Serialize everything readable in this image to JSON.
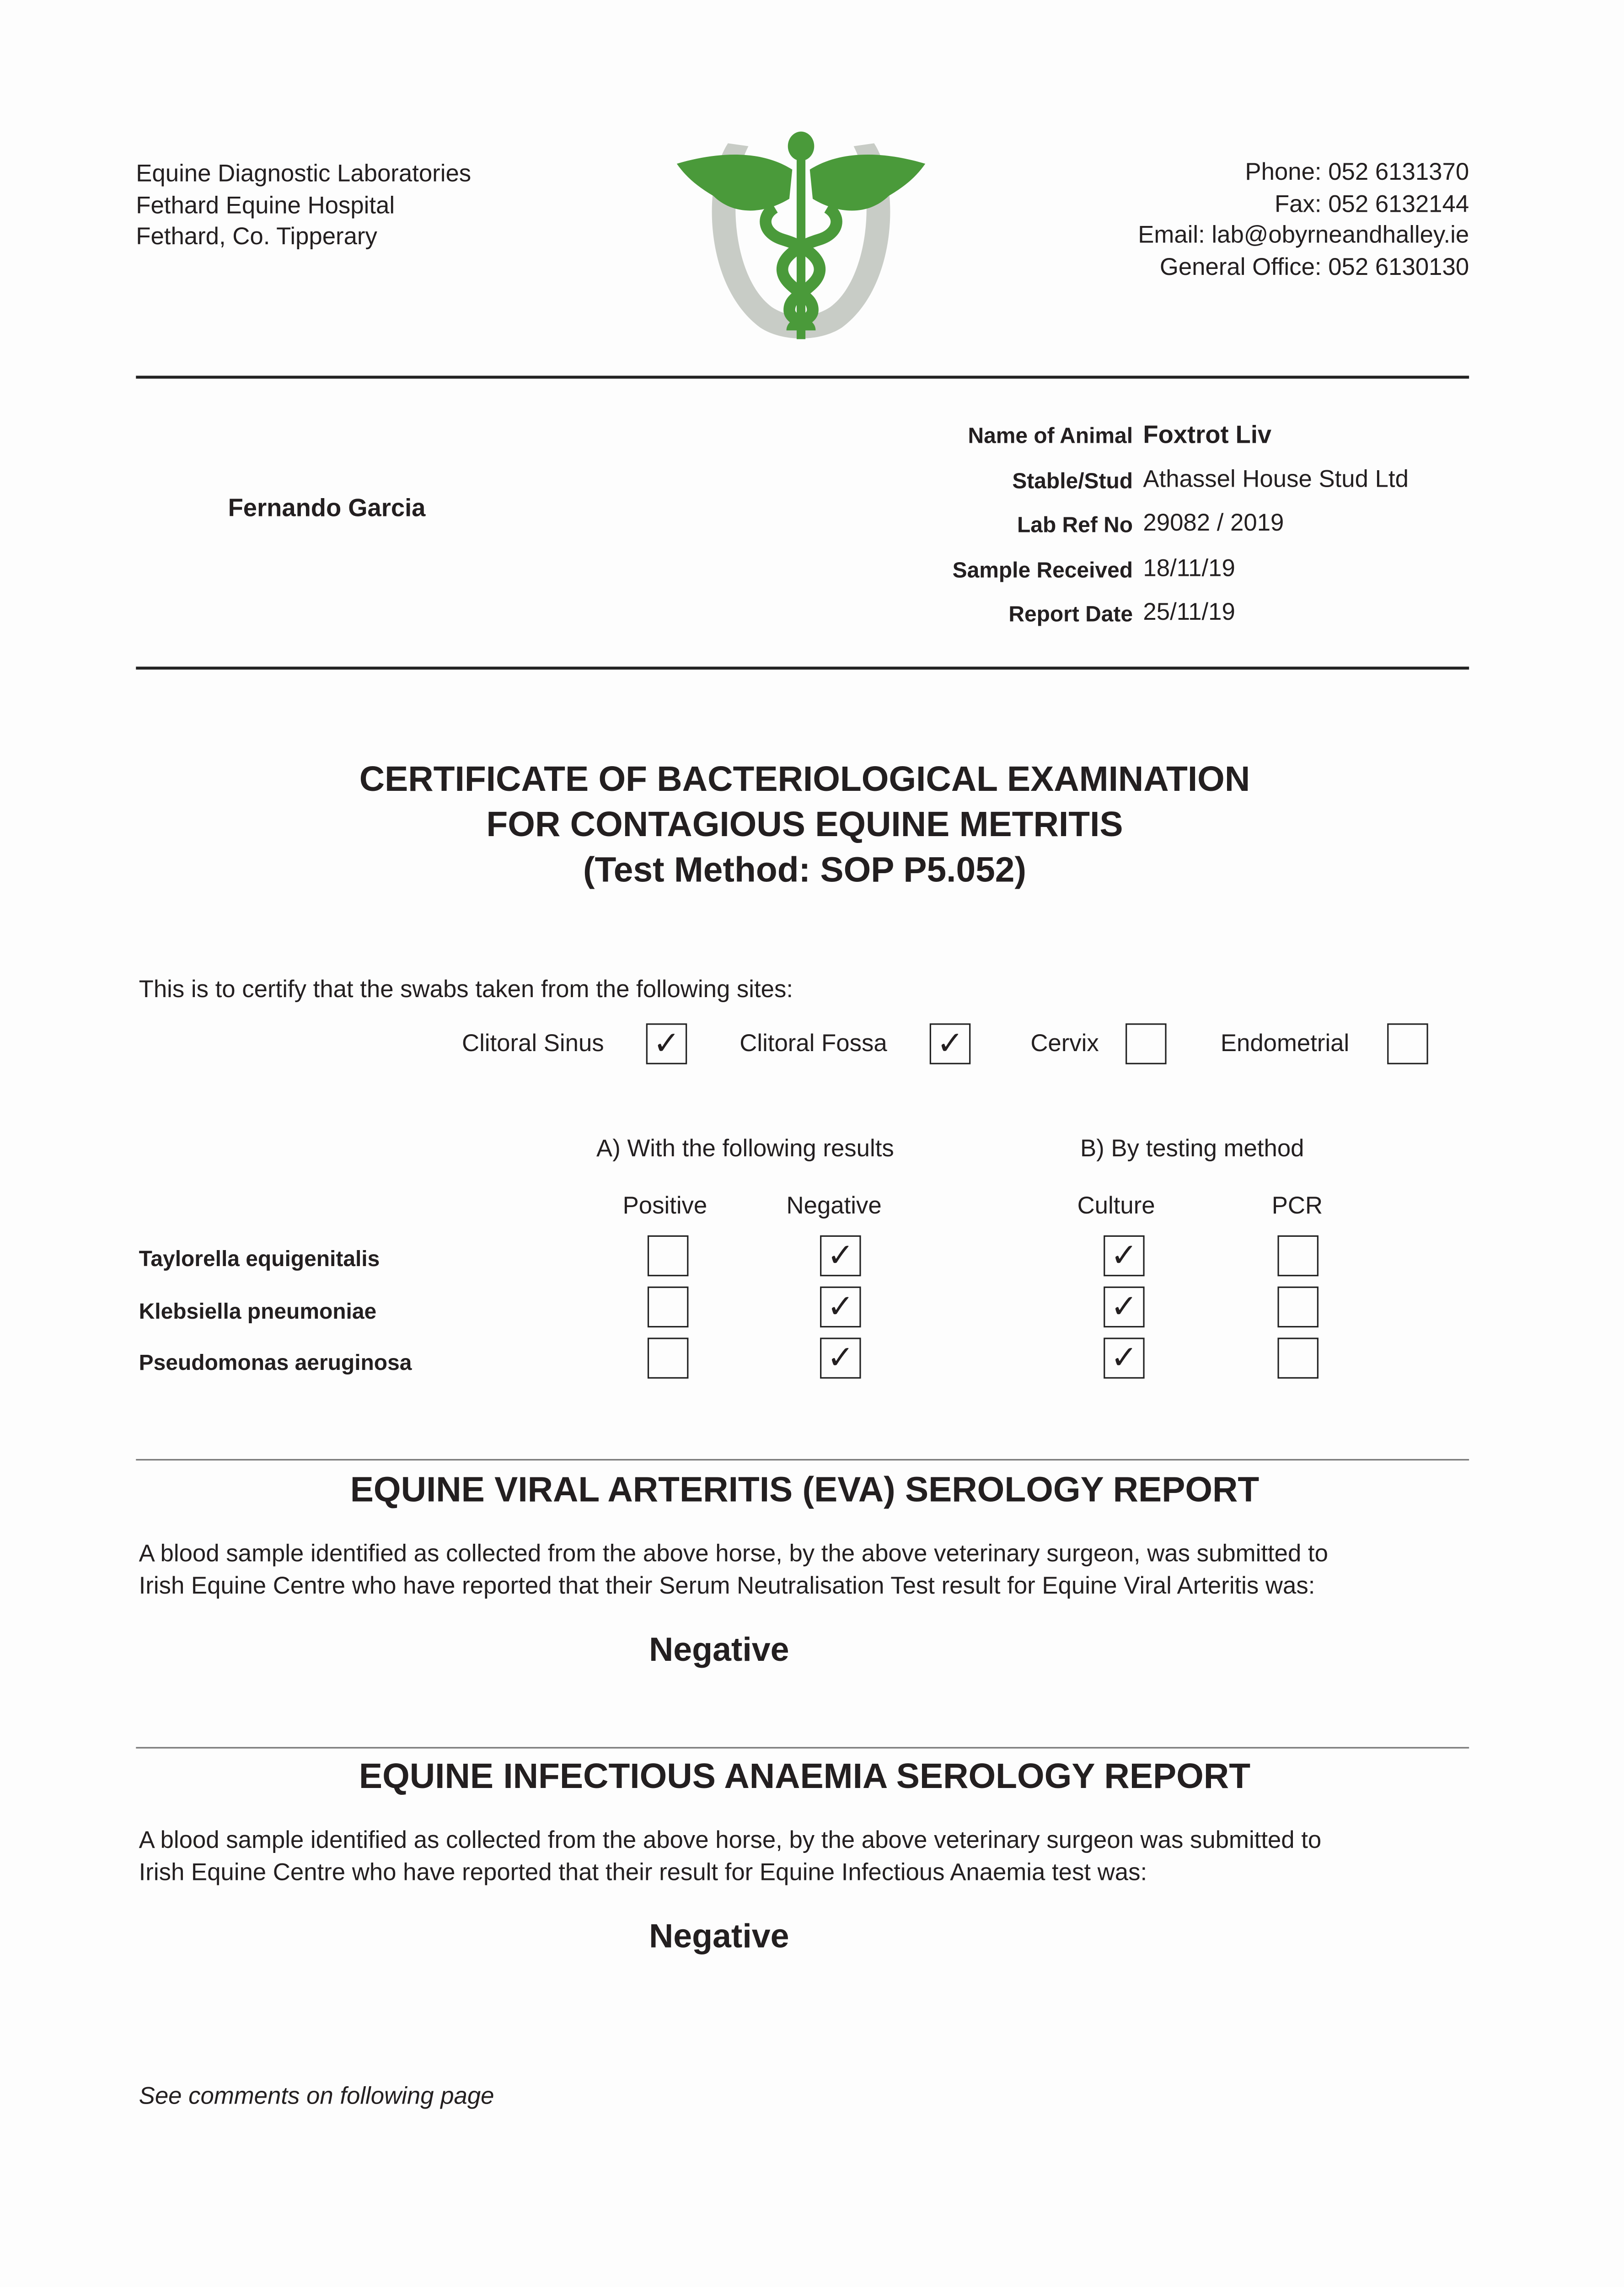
{
  "header": {
    "address": [
      "Equine Diagnostic Laboratories",
      "Fethard Equine Hospital",
      "Fethard, Co. Tipperary"
    ],
    "contact": [
      "Phone: 052 6131370",
      "Fax: 052 6132144",
      "Email: lab@obyrneandhalley.ie",
      "General Office: 052 6130130"
    ],
    "logo": {
      "icon": "caduceus-horseshoe-logo",
      "green": "#4a9a3a",
      "grey": "#c8ccc6"
    }
  },
  "recipient": "Fernando Garcia",
  "details": [
    {
      "label": "Name of Animal",
      "value": "Foxtrot Liv"
    },
    {
      "label": "Stable/Stud",
      "value": "Athassel House Stud Ltd"
    },
    {
      "label": "Lab Ref No",
      "value": "29082 / 2019"
    },
    {
      "label": "Sample Received",
      "value": "18/11/19"
    },
    {
      "label": "Report Date",
      "value": "25/11/19"
    }
  ],
  "cem": {
    "title": [
      "CERTIFICATE OF BACTERIOLOGICAL EXAMINATION",
      "FOR CONTAGIOUS EQUINE METRITIS",
      "(Test Method: SOP P5.052)"
    ],
    "intro": "This is to certify that the swabs taken from the following sites:",
    "check_mark": "✓",
    "sites": [
      {
        "label": "Clitoral Sinus",
        "checked": true
      },
      {
        "label": "Clitoral Fossa",
        "checked": true
      },
      {
        "label": "Cervix",
        "checked": false
      },
      {
        "label": "Endometrial",
        "checked": false
      }
    ],
    "group_a": "A) With the following results",
    "group_b": "B) By testing method",
    "columns": [
      "Positive",
      "Negative",
      "Culture",
      "PCR"
    ],
    "organisms": [
      {
        "name": "Taylorella equigenitalis",
        "checks": [
          false,
          true,
          true,
          false
        ]
      },
      {
        "name": "Klebsiella pneumoniae",
        "checks": [
          false,
          true,
          true,
          false
        ]
      },
      {
        "name": "Pseudomonas aeruginosa",
        "checks": [
          false,
          true,
          true,
          false
        ]
      }
    ]
  },
  "eva": {
    "title": "EQUINE VIRAL ARTERITIS (EVA) SEROLOGY REPORT",
    "text": [
      "A blood sample identified as collected from the above horse, by the above veterinary surgeon, was submitted to",
      "Irish Equine Centre who have reported that their Serum Neutralisation Test result for Equine Viral Arteritis was:"
    ],
    "result": "Negative"
  },
  "eia": {
    "title": "EQUINE INFECTIOUS ANAEMIA SEROLOGY REPORT",
    "text": [
      "A blood sample identified as collected from the above horse, by the above veterinary surgeon was submitted to",
      "Irish Equine Centre who have reported that their result for Equine Infectious Anaemia test was:"
    ],
    "result": "Negative"
  },
  "footer_note": "See comments on following page"
}
